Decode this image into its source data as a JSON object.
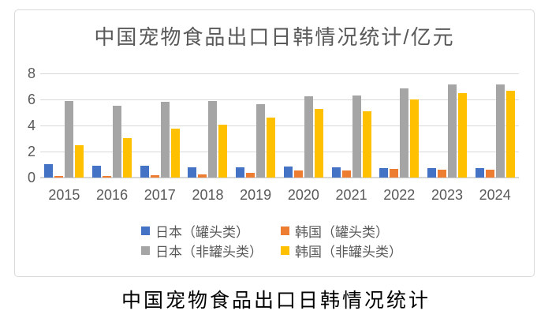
{
  "chart": {
    "title": "中国宠物食品出口日韩情况统计/亿元",
    "caption": "中国宠物食品出口日韩情况统计"
  },
  "colors": {
    "japan_canned": "#4472C4",
    "korea_canned": "#ED7D31",
    "japan_noncanned": "#A5A5A5",
    "korea_noncanned": "#FFC000",
    "gridline": "#D9D9D9",
    "axis_text": "#595959",
    "title_text": "#595959",
    "caption_text": "#000000",
    "frame_border": "#D9D9D9"
  },
  "chart_data": {
    "type": "bar",
    "title": "中国宠物食品出口日韩情况统计/亿元",
    "xlabel": "",
    "ylabel": "",
    "ylim": [
      0,
      8
    ],
    "yticks": [
      0,
      2,
      4,
      6,
      8
    ],
    "grid": true,
    "legend_position": "bottom",
    "categories": [
      "2015",
      "2016",
      "2017",
      "2018",
      "2019",
      "2020",
      "2021",
      "2022",
      "2023",
      "2024"
    ],
    "series": [
      {
        "key": "japan-canned",
        "name": "日本（罐头类）",
        "color": "#4472C4",
        "values": [
          1.05,
          0.9,
          0.9,
          0.8,
          0.8,
          0.85,
          0.8,
          0.7,
          0.75,
          0.75
        ]
      },
      {
        "key": "korea-canned",
        "name": "韩国（罐头类）",
        "color": "#ED7D31",
        "values": [
          0.1,
          0.15,
          0.2,
          0.25,
          0.35,
          0.55,
          0.55,
          0.65,
          0.6,
          0.6
        ]
      },
      {
        "key": "japan-noncanned",
        "name": "日本（非罐头类）",
        "color": "#A5A5A5",
        "values": [
          5.85,
          5.5,
          5.8,
          5.85,
          5.65,
          6.25,
          6.3,
          6.85,
          7.15,
          7.15
        ]
      },
      {
        "key": "korea-noncanned",
        "name": "韩国（非罐头类）",
        "color": "#FFC000",
        "values": [
          2.5,
          3.05,
          3.75,
          4.05,
          4.6,
          5.25,
          5.1,
          6.0,
          6.5,
          6.65
        ]
      }
    ]
  }
}
